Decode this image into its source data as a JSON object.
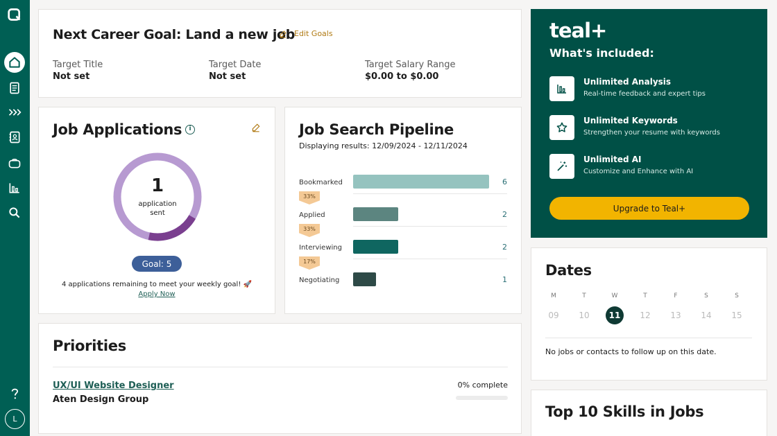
{
  "sidebar": {
    "logo_icon": "teal-logo-icon",
    "items": [
      "home-icon",
      "document-icon",
      "chevrons-icon",
      "contacts-icon",
      "briefcase-icon",
      "chart-icon",
      "search-icon"
    ],
    "help_icon": "help-icon",
    "avatar_initial": "L"
  },
  "goal": {
    "title": "Next Career Goal: Land a new job",
    "edit_label": "Edit Goals",
    "target_title_label": "Target Title",
    "target_title_value": "Not set",
    "target_date_label": "Target Date",
    "target_date_value": "Not set",
    "salary_label": "Target Salary Range",
    "salary_value": "$0.00 to $0.00"
  },
  "applications": {
    "title": "Job Applications",
    "count": "1",
    "count_label_line1": "application",
    "count_label_line2": "sent",
    "progress_fraction": 0.2,
    "goal_label": "Goal: 5",
    "remaining_text": "4 applications remaining to meet your weekly goal! 🚀",
    "apply_link": "Apply Now"
  },
  "pipeline": {
    "title": "Job Search Pipeline",
    "subtitle": "Displaying results: 12/09/2024 - 12/11/2024",
    "stages": [
      {
        "label": "Bookmarked",
        "count": "6",
        "value": 6,
        "color": "#95c3bf"
      },
      {
        "label": "Applied",
        "count": "2",
        "value": 2,
        "color": "#5c8580"
      },
      {
        "label": "Interviewing",
        "count": "2",
        "value": 2,
        "color": "#0f6660"
      },
      {
        "label": "Negotiating",
        "count": "1",
        "value": 1,
        "color": "#2e4a47"
      }
    ],
    "conversions": [
      "33%",
      "33%",
      "17%"
    ]
  },
  "teal_plus": {
    "logo_text": "teal",
    "logo_plus": "+",
    "heading": "What's included:",
    "features": [
      {
        "title": "Unlimited Analysis",
        "subtitle": "Real-time feedback and expert tips",
        "icon": "bar-chart-icon"
      },
      {
        "title": "Unlimited Keywords",
        "subtitle": "Strengthen your resume with keywords",
        "icon": "star-icon"
      },
      {
        "title": "Unlimited AI",
        "subtitle": "Customize and Enhance with AI",
        "icon": "magic-wand-icon"
      }
    ],
    "upgrade_label": "Upgrade to Teal+"
  },
  "dates": {
    "title": "Dates",
    "days": [
      "M",
      "T",
      "W",
      "T",
      "F",
      "S",
      "S"
    ],
    "numbers": [
      "09",
      "10",
      "11",
      "12",
      "13",
      "14",
      "15"
    ],
    "selected": "11",
    "empty_message": "No jobs or contacts to follow up on this date."
  },
  "priorities": {
    "title": "Priorities",
    "items": [
      {
        "job": "UX/UI Website Designer",
        "company": "Aten Design Group",
        "progress": "0% complete",
        "progress_value": 0
      }
    ]
  },
  "skills": {
    "title": "Top 10 Skills in Jobs"
  },
  "colors": {
    "brand": "#005f54",
    "accent": "#f2b400",
    "donut": "#b79ad1",
    "donut_fill": "#7a3f8f"
  }
}
